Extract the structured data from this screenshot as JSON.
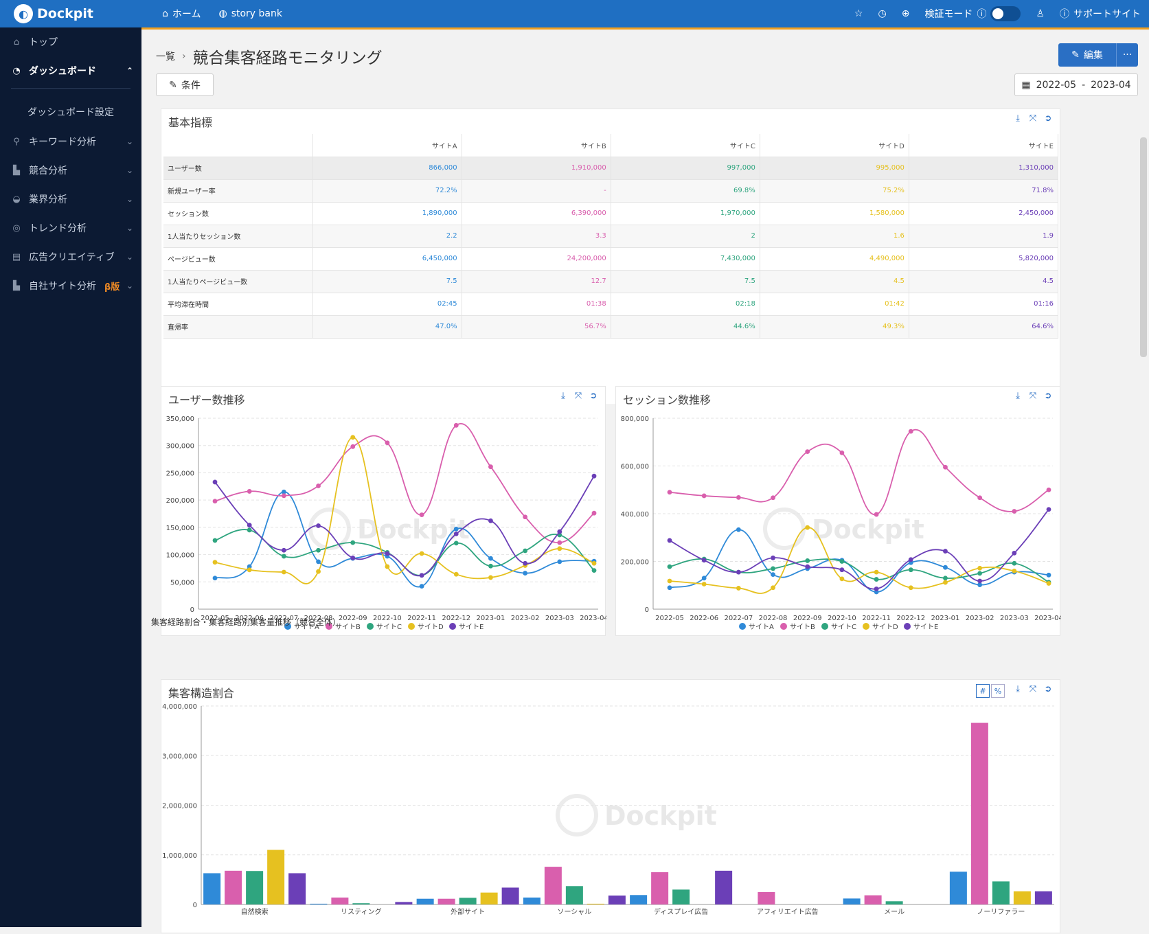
{
  "app": {
    "logo": "Dockpit"
  },
  "topnav": {
    "home": "ホーム",
    "storybank": "story bank",
    "verify": "検証モード",
    "support": "サポートサイト"
  },
  "sidebar": {
    "items": [
      {
        "label": "トップ",
        "icon": "home-icon"
      },
      {
        "label": "ダッシュボード",
        "icon": "dashboard-icon",
        "active": true
      },
      {
        "label": "ダッシュボード設定",
        "sub": true
      },
      {
        "label": "キーワード分析",
        "icon": "keyword-icon"
      },
      {
        "label": "競合分析",
        "icon": "competitor-icon"
      },
      {
        "label": "業界分析",
        "icon": "industry-icon"
      },
      {
        "label": "トレンド分析",
        "icon": "trend-icon"
      },
      {
        "label": "広告クリエイティブ",
        "icon": "ad-icon"
      },
      {
        "label": "自社サイト分析",
        "icon": "ownsite-icon",
        "badge": "β版"
      }
    ]
  },
  "page": {
    "breadcrumb_home": "一覧",
    "title": "競合集客経路モニタリング",
    "conditions_label": "条件",
    "edit_label": "編集",
    "date_from": "2022-05",
    "date_sep": "-",
    "date_to": "2023-04",
    "section_label": "集客経路割合・集客経路別集客量推移（競合全体）"
  },
  "colors": {
    "siteA": "#2f8ad8",
    "siteB": "#d95fad",
    "siteC": "#2fa57f",
    "siteD": "#e6c120",
    "siteE": "#6b3fb7",
    "brand": "#1f6fc2"
  },
  "metrics_panel": {
    "title": "基本指標",
    "columns": [
      "サイトA",
      "サイトB",
      "サイトC",
      "サイトD",
      "サイトE"
    ],
    "rows": [
      {
        "label": "ユーザー数",
        "values": [
          "866,000",
          "1,910,000",
          "997,000",
          "995,000",
          "1,310,000"
        ]
      },
      {
        "label": "新規ユーザー率",
        "values": [
          "72.2%",
          "-",
          "69.8%",
          "75.2%",
          "71.8%"
        ]
      },
      {
        "label": "セッション数",
        "values": [
          "1,890,000",
          "6,390,000",
          "1,970,000",
          "1,580,000",
          "2,450,000"
        ]
      },
      {
        "label": "1人当たりセッション数",
        "values": [
          "2.2",
          "3.3",
          "2",
          "1.6",
          "1.9"
        ]
      },
      {
        "label": "ページビュー数",
        "values": [
          "6,450,000",
          "24,200,000",
          "7,430,000",
          "4,490,000",
          "5,820,000"
        ]
      },
      {
        "label": "1人当たりページビュー数",
        "values": [
          "7.5",
          "12.7",
          "7.5",
          "4.5",
          "4.5"
        ]
      },
      {
        "label": "平均滞在時間",
        "values": [
          "02:45",
          "01:38",
          "02:18",
          "01:42",
          "01:16"
        ]
      },
      {
        "label": "直帰率",
        "values": [
          "47.0%",
          "56.7%",
          "44.6%",
          "49.3%",
          "64.6%"
        ]
      }
    ]
  },
  "chart_data": [
    {
      "type": "line",
      "title": "ユーザー数推移",
      "x": [
        "2022-05",
        "2022-06",
        "2022-07",
        "2022-08",
        "2022-09",
        "2022-10",
        "2022-11",
        "2022-12",
        "2023-01",
        "2023-02",
        "2023-03",
        "2023-04"
      ],
      "ylim": [
        0,
        350000
      ],
      "yticks": [
        0,
        50000,
        100000,
        150000,
        200000,
        250000,
        300000,
        350000
      ],
      "ytick_labels": [
        "0",
        "50,000",
        "100,000",
        "150,000",
        "200,000",
        "250,000",
        "300,000",
        "350,000"
      ],
      "series": [
        {
          "name": "サイトA",
          "values": [
            57000,
            78000,
            215000,
            87000,
            93000,
            97000,
            42000,
            147000,
            93000,
            66000,
            87000,
            88000
          ]
        },
        {
          "name": "サイトB",
          "values": [
            198000,
            216000,
            208000,
            226000,
            298000,
            305000,
            173000,
            337000,
            261000,
            169000,
            122000,
            176000
          ]
        },
        {
          "name": "サイトC",
          "values": [
            126000,
            145000,
            97000,
            108000,
            122000,
            104000,
            62000,
            121000,
            79000,
            107000,
            136000,
            71000
          ]
        },
        {
          "name": "サイトD",
          "values": [
            86000,
            72000,
            68000,
            69000,
            315000,
            78000,
            102000,
            64000,
            58000,
            80000,
            111000,
            84000
          ]
        },
        {
          "name": "サイトE",
          "values": [
            233000,
            154000,
            108000,
            153000,
            94000,
            102000,
            62000,
            138000,
            162000,
            84000,
            142000,
            244000
          ]
        }
      ],
      "legend": "bottom",
      "grid": true
    },
    {
      "type": "line",
      "title": "セッション数推移",
      "x": [
        "2022-05",
        "2022-06",
        "2022-07",
        "2022-08",
        "2022-09",
        "2022-10",
        "2022-11",
        "2022-12",
        "2023-01",
        "2023-02",
        "2023-03",
        "2023-04"
      ],
      "ylim": [
        0,
        800000
      ],
      "yticks": [
        0,
        200000,
        400000,
        600000,
        800000
      ],
      "ytick_labels": [
        "0",
        "200,000",
        "400,000",
        "600,000",
        "800,000"
      ],
      "series": [
        {
          "name": "サイトA",
          "values": [
            90000,
            130000,
            333000,
            145000,
            170000,
            205000,
            72000,
            195000,
            175000,
            102000,
            155000,
            143000
          ]
        },
        {
          "name": "サイトB",
          "values": [
            490000,
            475000,
            468000,
            467000,
            660000,
            655000,
            397000,
            745000,
            595000,
            467000,
            410000,
            500000
          ]
        },
        {
          "name": "サイトC",
          "values": [
            178000,
            210000,
            155000,
            170000,
            203000,
            200000,
            125000,
            165000,
            130000,
            150000,
            192000,
            113000
          ]
        },
        {
          "name": "サイトD",
          "values": [
            118000,
            105000,
            88000,
            90000,
            342000,
            127000,
            155000,
            90000,
            112000,
            172000,
            160000,
            108000
          ]
        },
        {
          "name": "サイトE",
          "values": [
            288000,
            205000,
            155000,
            215000,
            178000,
            165000,
            85000,
            208000,
            243000,
            118000,
            235000,
            418000
          ]
        }
      ],
      "legend": "bottom",
      "grid": true
    },
    {
      "type": "bar",
      "title": "集客構造割合",
      "categories": [
        "自然検索",
        "リスティング",
        "外部サイト",
        "ソーシャル",
        "ディスプレイ広告",
        "アフィリエイト広告",
        "メール",
        "ノーリファラー"
      ],
      "ylim": [
        0,
        4000000
      ],
      "yticks": [
        0,
        1000000,
        2000000,
        3000000,
        4000000
      ],
      "ytick_labels": [
        "0",
        "1,000,000",
        "2,000,000",
        "3,000,000",
        "4,000,000"
      ],
      "toggle_labels": [
        "#",
        "%"
      ],
      "series": [
        {
          "name": "サイトA",
          "values": [
            630000,
            15000,
            115000,
            140000,
            190000,
            0,
            120000,
            660000
          ]
        },
        {
          "name": "サイトB",
          "values": [
            680000,
            140000,
            115000,
            760000,
            650000,
            250000,
            185000,
            3660000
          ]
        },
        {
          "name": "サイトC",
          "values": [
            675000,
            25000,
            135000,
            370000,
            300000,
            0,
            65000,
            465000
          ]
        },
        {
          "name": "サイトD",
          "values": [
            1100000,
            0,
            240000,
            15000,
            0,
            0,
            0,
            265000
          ]
        },
        {
          "name": "サイトE",
          "values": [
            630000,
            50000,
            340000,
            180000,
            680000,
            0,
            0,
            265000
          ]
        }
      ],
      "legend": "none",
      "grid": true
    }
  ],
  "watermark": "Dockpit"
}
